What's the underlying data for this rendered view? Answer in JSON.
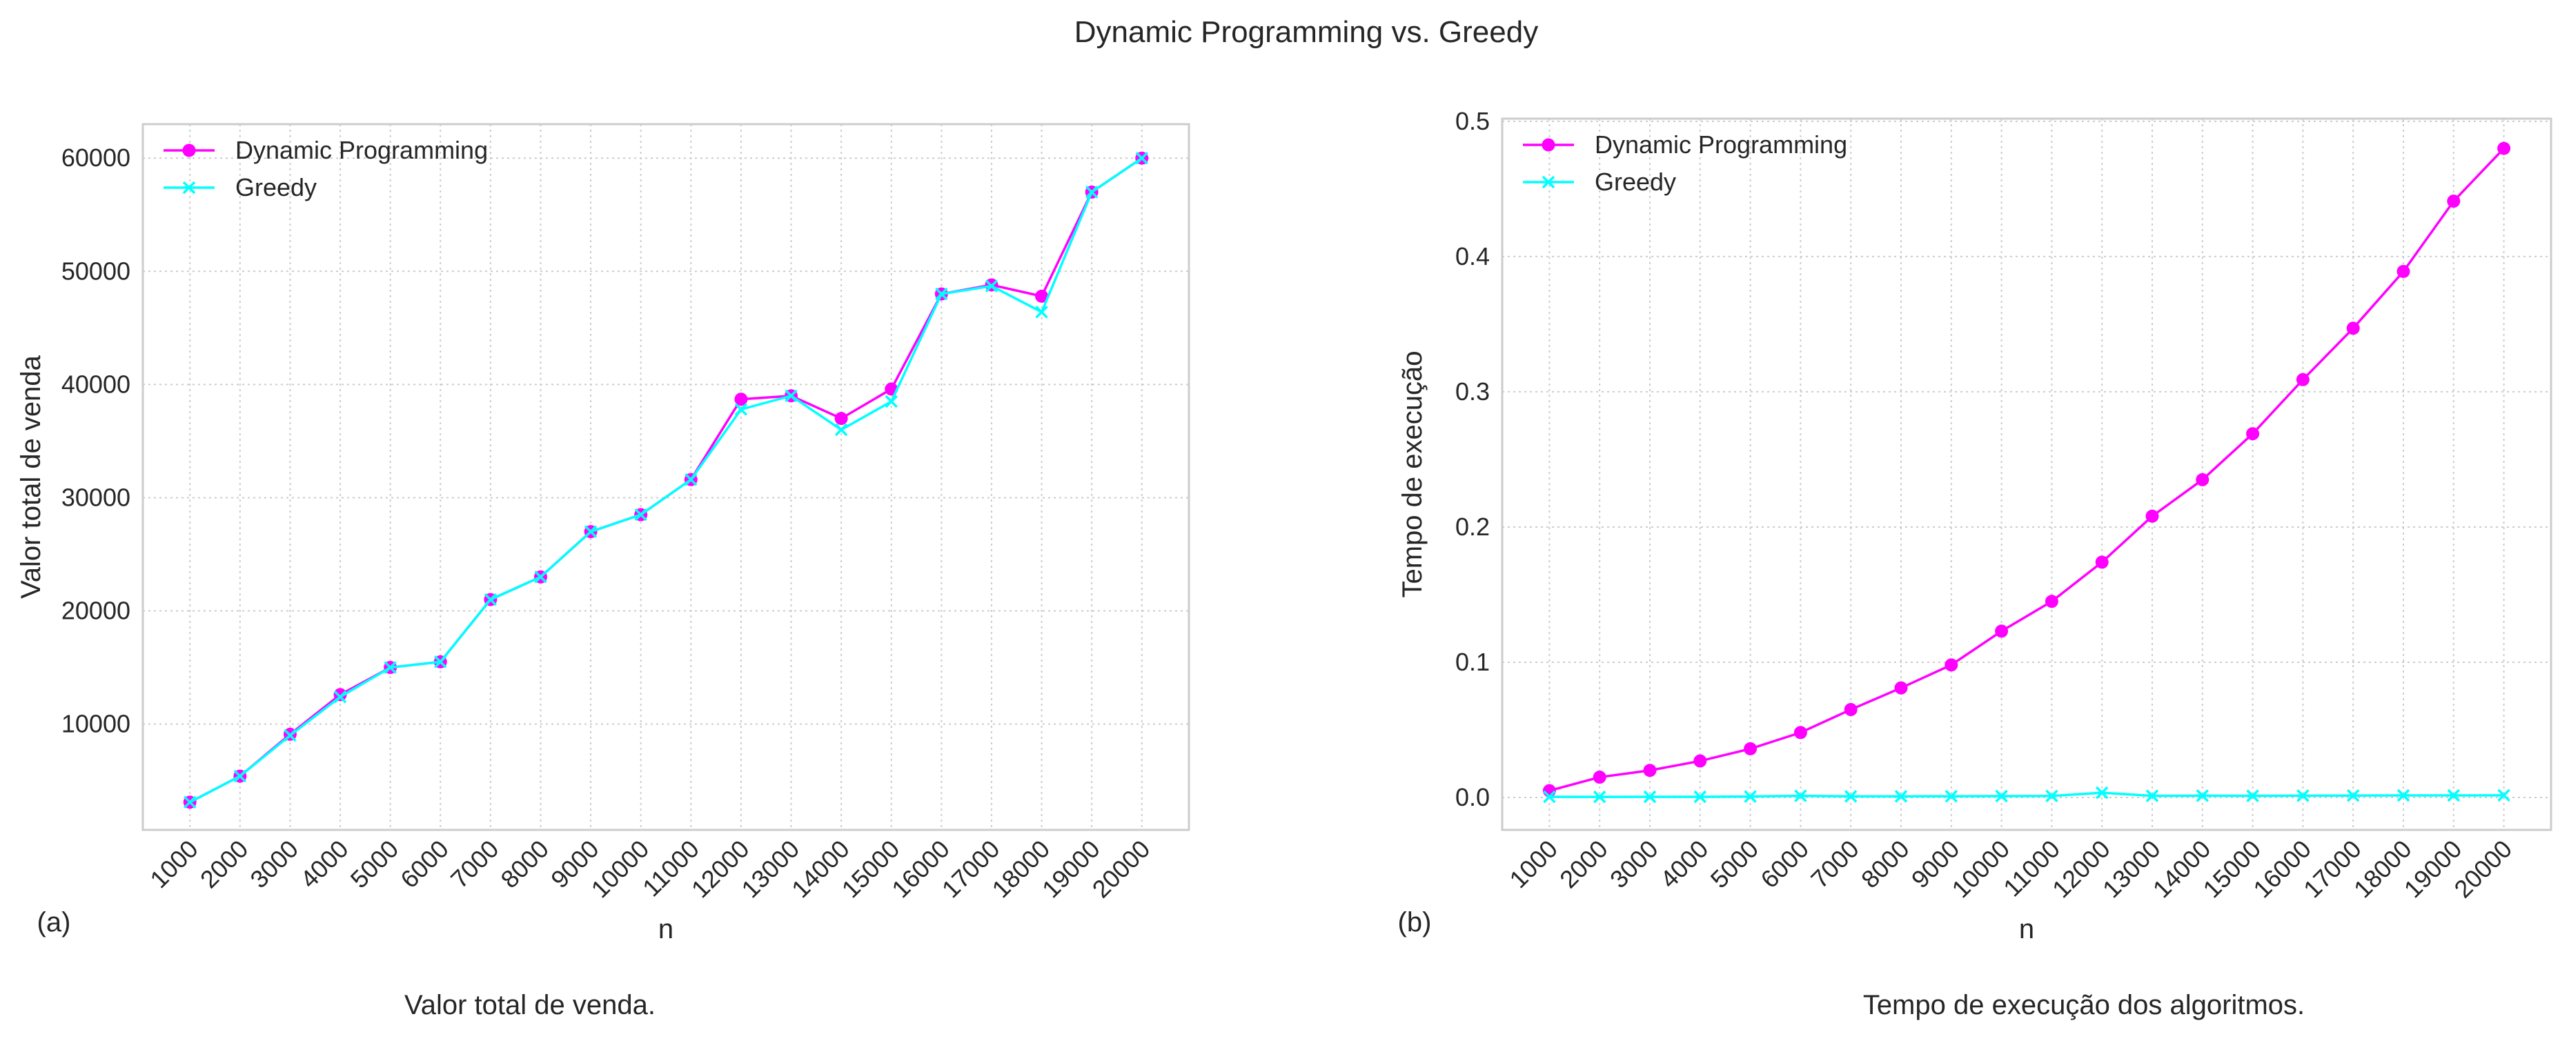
{
  "figure": {
    "title": "Dynamic Programming vs. Greedy",
    "colors": {
      "dp": "#ff00ff",
      "greedy": "#00ffff",
      "grid": "#cccccc",
      "frame": "#cccccc"
    }
  },
  "chart_data": [
    {
      "type": "line",
      "panel_label": "(a)",
      "caption": "Valor total de venda.",
      "xlabel": "n",
      "ylabel": "Valor total de venda",
      "x": [
        1000,
        2000,
        3000,
        4000,
        5000,
        6000,
        7000,
        8000,
        9000,
        10000,
        11000,
        12000,
        13000,
        14000,
        15000,
        16000,
        17000,
        18000,
        19000,
        20000
      ],
      "ylim": [
        650,
        63000
      ],
      "yticks": [
        10000,
        20000,
        30000,
        40000,
        50000,
        60000
      ],
      "grid": true,
      "legend": "top-left",
      "series": [
        {
          "name": "Dynamic Programming",
          "marker": "circle",
          "color": "#ff00ff",
          "values": [
            3100,
            5400,
            9100,
            12600,
            15000,
            15500,
            21000,
            23000,
            27000,
            28500,
            31600,
            38700,
            39000,
            37000,
            39600,
            48000,
            48800,
            47800,
            57000,
            60000
          ]
        },
        {
          "name": "Greedy",
          "marker": "x",
          "color": "#00ffff",
          "values": [
            3100,
            5400,
            9000,
            12400,
            15000,
            15500,
            21000,
            23000,
            27000,
            28500,
            31600,
            37800,
            39000,
            36000,
            38500,
            48000,
            48700,
            46400,
            57000,
            60000
          ]
        }
      ]
    },
    {
      "type": "line",
      "panel_label": "(b)",
      "caption": "Tempo de execução dos algoritmos.",
      "xlabel": "n",
      "ylabel": "Tempo de execução",
      "x": [
        1000,
        2000,
        3000,
        4000,
        5000,
        6000,
        7000,
        8000,
        9000,
        10000,
        11000,
        12000,
        13000,
        14000,
        15000,
        16000,
        17000,
        18000,
        19000,
        20000
      ],
      "ylim": [
        -0.024,
        0.502
      ],
      "yticks": [
        0.0,
        0.1,
        0.2,
        0.3,
        0.4,
        0.5
      ],
      "grid": true,
      "legend": "top-left",
      "series": [
        {
          "name": "Dynamic Programming",
          "marker": "circle",
          "color": "#ff00ff",
          "values": [
            0.005,
            0.015,
            0.02,
            0.027,
            0.036,
            0.048,
            0.065,
            0.081,
            0.098,
            0.123,
            0.145,
            0.174,
            0.208,
            0.235,
            0.269,
            0.309,
            0.347,
            0.389,
            0.441,
            0.48
          ]
        },
        {
          "name": "Greedy",
          "marker": "x",
          "color": "#00ffff",
          "values": [
            0.0005,
            0.0004,
            0.0005,
            0.0005,
            0.0007,
            0.0012,
            0.0008,
            0.0008,
            0.0009,
            0.001,
            0.0011,
            0.0035,
            0.0012,
            0.0013,
            0.0012,
            0.0013,
            0.0014,
            0.0015,
            0.0015,
            0.0016
          ]
        }
      ]
    }
  ]
}
